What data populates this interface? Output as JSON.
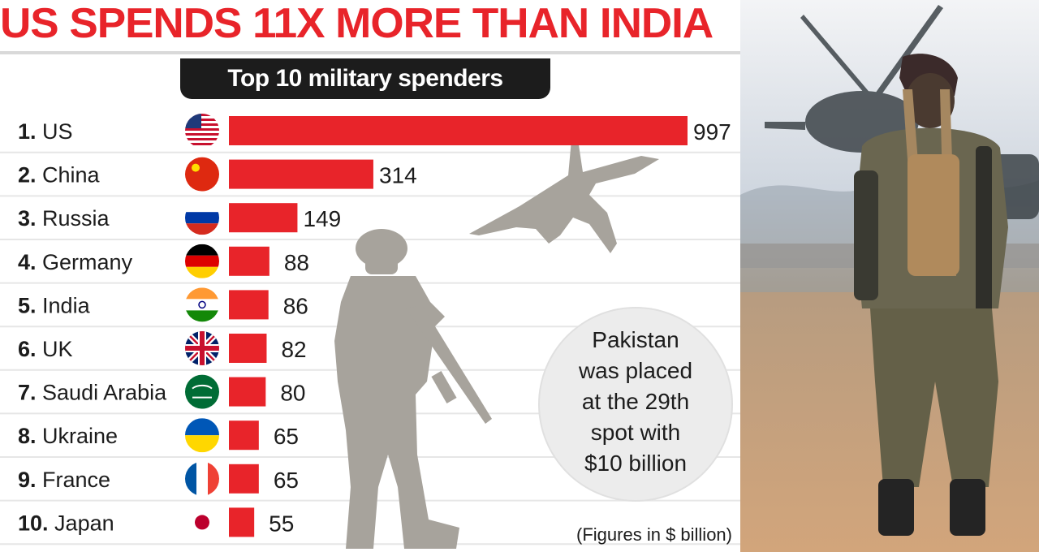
{
  "headline": "US SPENDS 11X MORE THAN INDIA",
  "subtitle": "Top 10 military spenders",
  "callout": "Pakistan\nwas placed\nat the 29th\nspot with\n$10 billion",
  "units_note": "(Figures in $ billion)",
  "colors": {
    "headline": "#e8242a",
    "bar": "#e8242a",
    "pill": "#1c1c1c",
    "callout": "#ececec"
  },
  "icons": [
    "flag-icon",
    "fighter-jet-silhouette",
    "soldier-silhouette",
    "soldier-photo"
  ],
  "chart_data": {
    "type": "bar",
    "orientation": "horizontal",
    "title": "Top 10 military spenders",
    "xlabel": "",
    "ylabel": "",
    "xlim": [
      0,
      997
    ],
    "grid": false,
    "categories": [
      "US",
      "China",
      "Russia",
      "Germany",
      "India",
      "UK",
      "Saudi Arabia",
      "Ukraine",
      "France",
      "Japan"
    ],
    "ranks": [
      "1.",
      "2.",
      "3.",
      "4.",
      "5.",
      "6.",
      "7.",
      "8.",
      "9.",
      "10."
    ],
    "values": [
      997,
      314,
      149,
      88,
      86,
      82,
      80,
      65,
      65,
      55
    ]
  }
}
